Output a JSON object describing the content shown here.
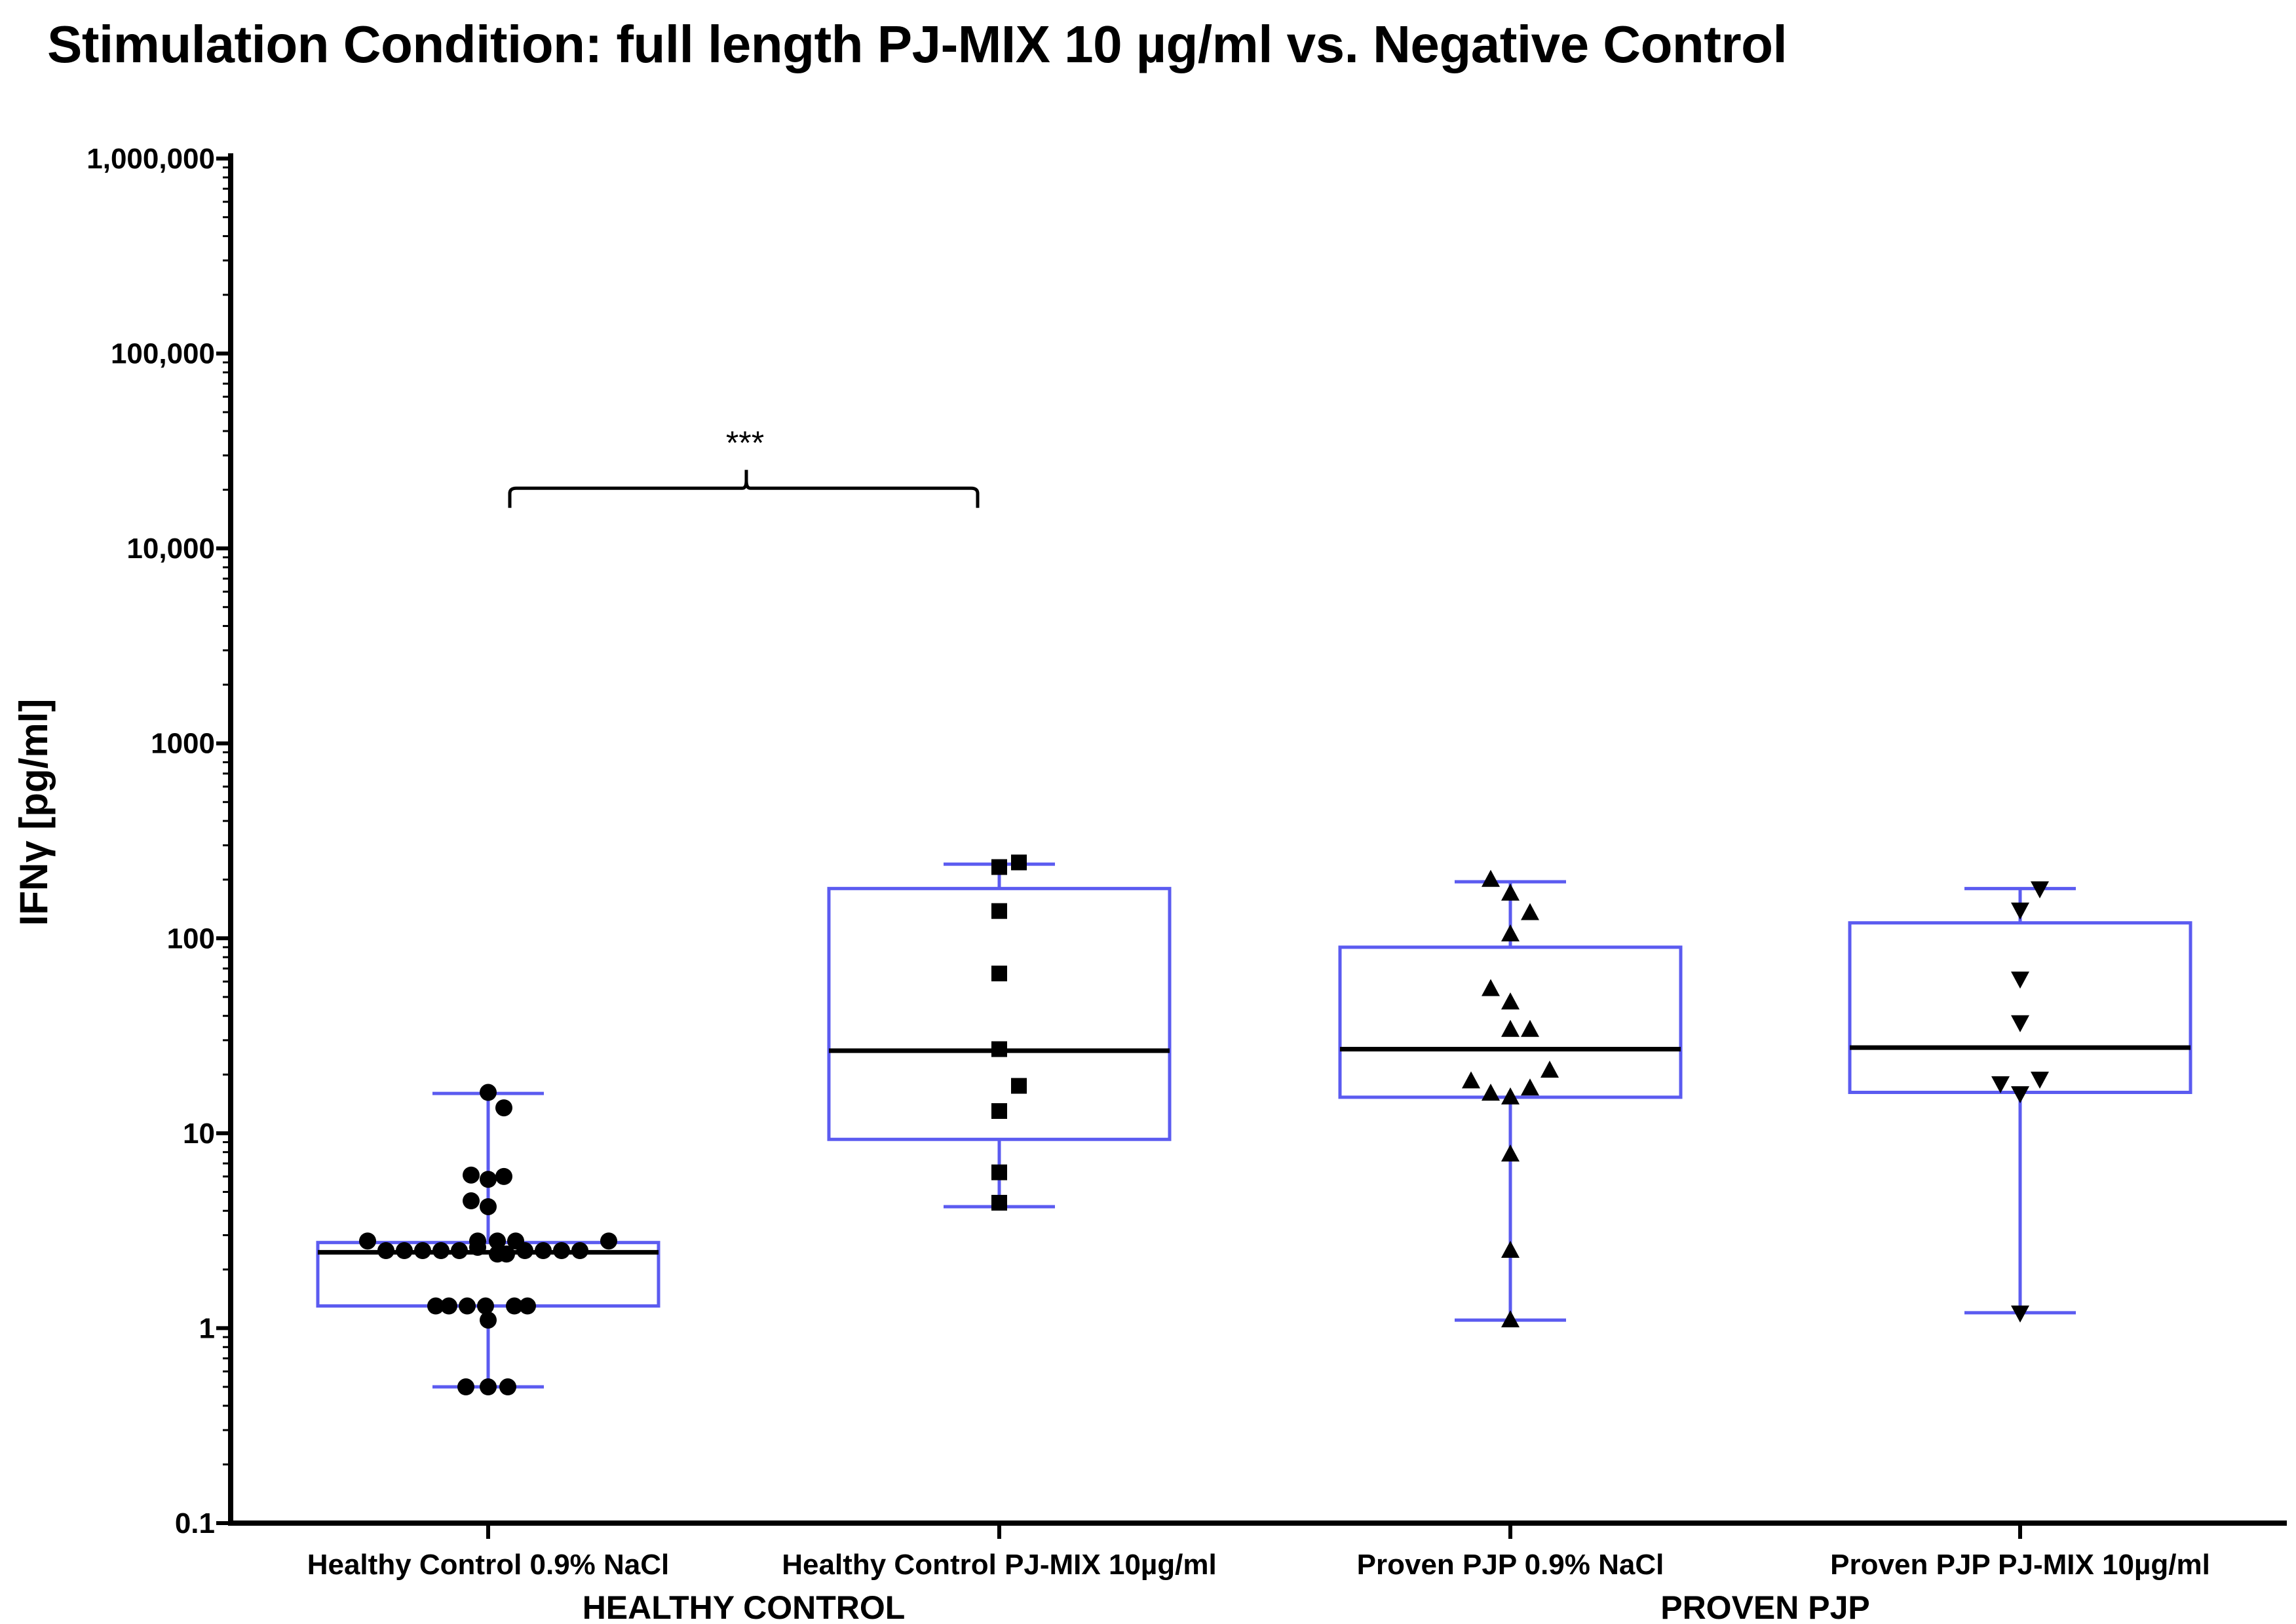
{
  "title": "Stimulation Condition: full length PJ-MIX 10 µg/ml vs. Negative Control",
  "chart_data": {
    "type": "box",
    "title": "Stimulation Condition: full length PJ-MIX 10 µg/ml vs. Negative Control",
    "ylabel": "IFNγ [pg/ml]",
    "yscale": "log",
    "ylim": [
      0.1,
      1000000
    ],
    "yticks": [
      {
        "value": 0.1,
        "label": "0.1"
      },
      {
        "value": 1,
        "label": "1"
      },
      {
        "value": 10,
        "label": "10"
      },
      {
        "value": 100,
        "label": "100"
      },
      {
        "value": 1000,
        "label": "1000"
      },
      {
        "value": 10000,
        "label": "10,000"
      },
      {
        "value": 100000,
        "label": "100,000"
      },
      {
        "value": 1000000,
        "label": "1,000,000"
      }
    ],
    "box_color": "#5b5bf0",
    "median_color": "#000000",
    "point_color": "#000000",
    "categories": [
      {
        "label": "Healthy Control 0.9% NaCl",
        "marker": "circle",
        "whisker_low": 0.5,
        "q1": 1.3,
        "median": 2.45,
        "q3": 2.75,
        "whisker_high": 16,
        "points": [
          {
            "v": 16.2,
            "o": 0.0
          },
          {
            "v": 13.5,
            "o": 0.12
          },
          {
            "v": 6.1,
            "o": -0.13
          },
          {
            "v": 6.0,
            "o": 0.12
          },
          {
            "v": 5.8,
            "o": 0.0
          },
          {
            "v": 4.5,
            "o": -0.13
          },
          {
            "v": 4.2,
            "o": 0.0
          },
          {
            "v": 2.8,
            "o": -0.92
          },
          {
            "v": 2.5,
            "o": -0.78
          },
          {
            "v": 2.5,
            "o": -0.64
          },
          {
            "v": 2.5,
            "o": -0.5
          },
          {
            "v": 2.5,
            "o": -0.36
          },
          {
            "v": 2.5,
            "o": -0.22
          },
          {
            "v": 2.6,
            "o": -0.08
          },
          {
            "v": 2.8,
            "o": -0.08
          },
          {
            "v": 2.8,
            "o": 0.07
          },
          {
            "v": 2.4,
            "o": 0.07
          },
          {
            "v": 2.4,
            "o": 0.14
          },
          {
            "v": 2.8,
            "o": 0.21
          },
          {
            "v": 2.5,
            "o": 0.28
          },
          {
            "v": 2.5,
            "o": 0.42
          },
          {
            "v": 2.5,
            "o": 0.56
          },
          {
            "v": 2.5,
            "o": 0.7
          },
          {
            "v": 2.8,
            "o": 0.92
          },
          {
            "v": 1.3,
            "o": -0.4
          },
          {
            "v": 1.3,
            "o": -0.3
          },
          {
            "v": 1.3,
            "o": -0.16
          },
          {
            "v": 1.3,
            "o": -0.02
          },
          {
            "v": 1.3,
            "o": 0.2
          },
          {
            "v": 1.3,
            "o": 0.3
          },
          {
            "v": 1.1,
            "o": 0.0
          },
          {
            "v": 0.5,
            "o": -0.17
          },
          {
            "v": 0.5,
            "o": 0.0
          },
          {
            "v": 0.5,
            "o": 0.15
          }
        ]
      },
      {
        "label": "Healthy Control PJ-MIX 10µg/ml",
        "marker": "square",
        "whisker_low": 4.2,
        "q1": 9.3,
        "median": 26.5,
        "q3": 180,
        "whisker_high": 240,
        "points": [
          {
            "v": 245,
            "o": 0.15
          },
          {
            "v": 232,
            "o": 0.0
          },
          {
            "v": 138,
            "o": 0.0
          },
          {
            "v": 66,
            "o": 0.0
          },
          {
            "v": 27,
            "o": 0.0
          },
          {
            "v": 17.5,
            "o": 0.15
          },
          {
            "v": 13,
            "o": 0.0
          },
          {
            "v": 6.3,
            "o": 0.0
          },
          {
            "v": 4.4,
            "o": 0.0
          }
        ]
      },
      {
        "label": "Proven PJP 0.9% NaCl",
        "marker": "triangle-up",
        "whisker_low": 1.1,
        "q1": 15.3,
        "median": 27,
        "q3": 90,
        "whisker_high": 195,
        "points": [
          {
            "v": 200,
            "o": -0.15
          },
          {
            "v": 170,
            "o": 0.0
          },
          {
            "v": 135,
            "o": 0.15
          },
          {
            "v": 105,
            "o": 0.0
          },
          {
            "v": 55,
            "o": -0.15
          },
          {
            "v": 47,
            "o": 0.0
          },
          {
            "v": 34,
            "o": 0.0
          },
          {
            "v": 34,
            "o": 0.15
          },
          {
            "v": 21,
            "o": 0.3
          },
          {
            "v": 18.5,
            "o": -0.3
          },
          {
            "v": 17,
            "o": 0.15
          },
          {
            "v": 16,
            "o": -0.15
          },
          {
            "v": 15.3,
            "o": 0.0
          },
          {
            "v": 7.8,
            "o": 0.0
          },
          {
            "v": 2.5,
            "o": 0.0
          },
          {
            "v": 1.1,
            "o": 0.0
          }
        ]
      },
      {
        "label": "Proven PJP PJ-MIX 10µg/ml",
        "marker": "triangle-down",
        "whisker_low": 1.2,
        "q1": 16.2,
        "median": 27.5,
        "q3": 120,
        "whisker_high": 180,
        "points": [
          {
            "v": 180,
            "o": 0.15
          },
          {
            "v": 140,
            "o": 0.0
          },
          {
            "v": 62,
            "o": 0.0
          },
          {
            "v": 37,
            "o": 0.0
          },
          {
            "v": 19,
            "o": 0.15
          },
          {
            "v": 18,
            "o": -0.15
          },
          {
            "v": 16,
            "o": 0.0
          },
          {
            "v": 1.2,
            "o": 0.0
          }
        ]
      }
    ],
    "groups": [
      {
        "label": "HEALTHY CONTROL",
        "spans": [
          0,
          1
        ]
      },
      {
        "label": "PROVEN PJP",
        "spans": [
          2,
          3
        ]
      }
    ],
    "significance": [
      {
        "from": 0,
        "to": 1,
        "label": "***",
        "at_value": 22000
      }
    ]
  }
}
